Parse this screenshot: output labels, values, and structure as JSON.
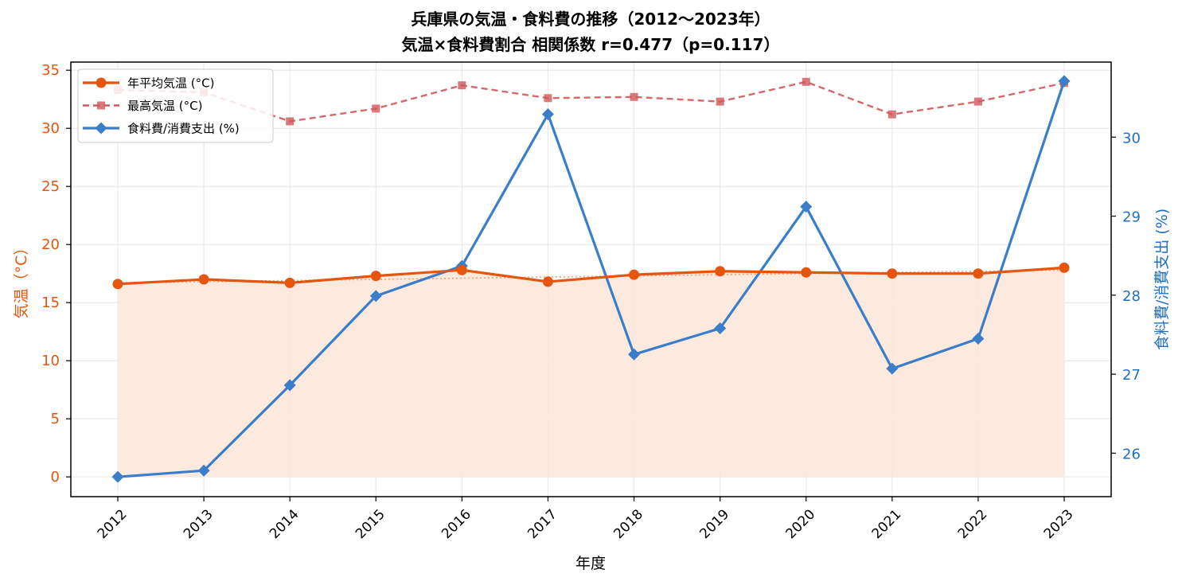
{
  "chart_data": {
    "type": "line",
    "title": "兵庫県の気温・食料費の推移（2012〜2023年）",
    "subtitle": "気温×食料費割合 相関係数 r=0.477（p=0.117）",
    "xlabel": "年度",
    "ylabel_left": "気温（°C）",
    "ylabel_right": "食料費/消費支出 (%)",
    "categories": [
      "2012",
      "2013",
      "2014",
      "2015",
      "2016",
      "2017",
      "2018",
      "2019",
      "2020",
      "2021",
      "2022",
      "2023"
    ],
    "y_left": {
      "lim": [
        -1.7,
        35.7
      ],
      "ticks": [
        0,
        5,
        10,
        15,
        20,
        25,
        30,
        35
      ]
    },
    "y_right": {
      "lim": [
        25.45,
        30.95
      ],
      "ticks": [
        26,
        27,
        28,
        29,
        30
      ]
    },
    "grid": true,
    "legend_position": "top-left",
    "series": [
      {
        "name": "年平均気温 (°C)",
        "axis": "left",
        "style": "solid",
        "marker": "circle",
        "color": "#e6550d",
        "values": [
          16.6,
          17.0,
          16.7,
          17.3,
          17.8,
          16.8,
          17.4,
          17.7,
          17.6,
          17.5,
          17.5,
          18.0
        ]
      },
      {
        "name": "最高気温 (°C)",
        "axis": "left",
        "style": "dashed",
        "marker": "square",
        "color": "#d0585b",
        "values": [
          33.3,
          33.1,
          30.6,
          31.7,
          33.7,
          32.6,
          32.7,
          32.3,
          34.0,
          31.2,
          32.3,
          33.9
        ]
      },
      {
        "name": "食料費/消費支出 (%)",
        "axis": "right",
        "style": "solid",
        "marker": "diamond",
        "color": "#3a7dc9",
        "values": [
          25.7,
          25.78,
          26.86,
          27.99,
          28.37,
          30.29,
          27.25,
          27.58,
          29.12,
          27.07,
          27.45,
          30.71
        ]
      }
    ],
    "trend_line": {
      "axis": "left",
      "style": "dotted",
      "color": "#f4a582",
      "values": [
        16.7,
        16.8,
        16.9,
        17.0,
        17.1,
        17.2,
        17.3,
        17.4,
        17.5,
        17.6,
        17.7,
        17.8
      ]
    },
    "fill_under": {
      "series": "年平均気温 (°C)",
      "color": "#fbe6d8"
    }
  },
  "colors": {
    "left_axis": "#e6550d",
    "right_axis": "#1f6fc6",
    "grid": "#e6e6e6"
  }
}
